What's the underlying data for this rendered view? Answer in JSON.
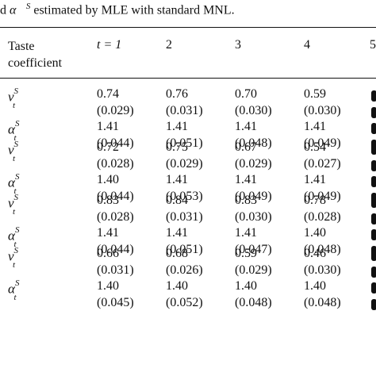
{
  "caption": {
    "prefix": "d",
    "symbol": "α⃗",
    "symbol_sup": "S",
    "text": " estimated by MLE with standard MNL."
  },
  "table": {
    "header": {
      "first_col": [
        "Taste",
        "coefficient"
      ],
      "t_label": "t = 1",
      "cols": [
        "2",
        "3",
        "4",
        "5"
      ]
    },
    "groups": [
      {
        "v_est": [
          "0.74",
          "0.76",
          "0.70",
          "0.59"
        ],
        "v_se": [
          "(0.029)",
          "(0.031)",
          "(0.030)",
          "(0.030)"
        ],
        "a_est": [
          "1.41",
          "1.41",
          "1.41",
          "1.41"
        ],
        "a_se": [
          "(0.044)",
          "(0.051)",
          "(0.048)",
          "(0.049)"
        ]
      },
      {
        "v_est": [
          "0.72",
          "0.75",
          "0.67",
          "0.54"
        ],
        "v_se": [
          "(0.028)",
          "(0.029)",
          "(0.029)",
          "(0.027)"
        ],
        "a_est": [
          "1.40",
          "1.41",
          "1.41",
          "1.41"
        ],
        "a_se": [
          "(0.044)",
          "(0.053)",
          "(0.049)",
          "(0.049)"
        ]
      },
      {
        "v_est": [
          "0.83",
          "0.84",
          "0.83",
          "0.78"
        ],
        "v_se": [
          "(0.028)",
          "(0.031)",
          "(0.030)",
          "(0.028)"
        ],
        "a_est": [
          "1.41",
          "1.41",
          "1.41",
          "1.40"
        ],
        "a_se": [
          "(0.044)",
          "(0.051)",
          "(0.047)",
          "(0.048)"
        ]
      },
      {
        "v_est": [
          "0.66",
          "0.68",
          "0.59",
          "0.46"
        ],
        "v_se": [
          "(0.031)",
          "(0.026)",
          "(0.029)",
          "(0.030)"
        ],
        "a_est": [
          "1.40",
          "1.40",
          "1.40",
          "1.40"
        ],
        "a_se": [
          "(0.045)",
          "(0.052)",
          "(0.048)",
          "(0.048)"
        ]
      }
    ],
    "symbols": {
      "v": "v",
      "a": "α",
      "sup": "S",
      "sub": "t"
    }
  }
}
